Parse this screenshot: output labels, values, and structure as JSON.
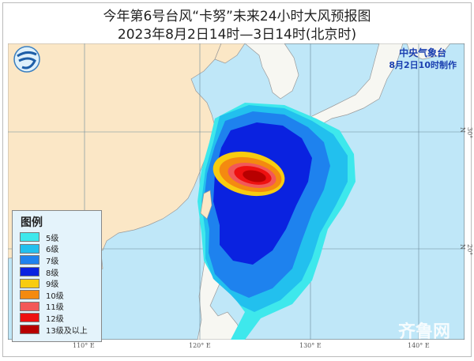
{
  "title": "今年第6号台风“卡努”未来24小时大风预报图",
  "subtitle": "2023年8月2日14时—3日14时(北京时)",
  "agency": {
    "name": "中央气象台",
    "issued": "8月2日10时制作"
  },
  "legend": {
    "title": "图例",
    "items": [
      {
        "label": "5级",
        "color": "#3ee8ec"
      },
      {
        "label": "6级",
        "color": "#22c0ee"
      },
      {
        "label": "7级",
        "color": "#1e82ee"
      },
      {
        "label": "8级",
        "color": "#0a22e0"
      },
      {
        "label": "9级",
        "color": "#f8cc10"
      },
      {
        "label": "10级",
        "color": "#f48a10"
      },
      {
        "label": "11级",
        "color": "#f25858"
      },
      {
        "label": "12级",
        "color": "#ee1010"
      },
      {
        "label": "13级及以上",
        "color": "#b80000"
      }
    ]
  },
  "axes": {
    "longitude": [
      "110° E",
      "120° E",
      "130° E",
      "140° E"
    ],
    "latitude": [
      "30° N",
      "20° N"
    ]
  },
  "watermark": "齐鲁网",
  "colors": {
    "sea": "#bfe7f8",
    "land": "#fbe7c6",
    "neighbor_land": "#f7f7f2"
  }
}
